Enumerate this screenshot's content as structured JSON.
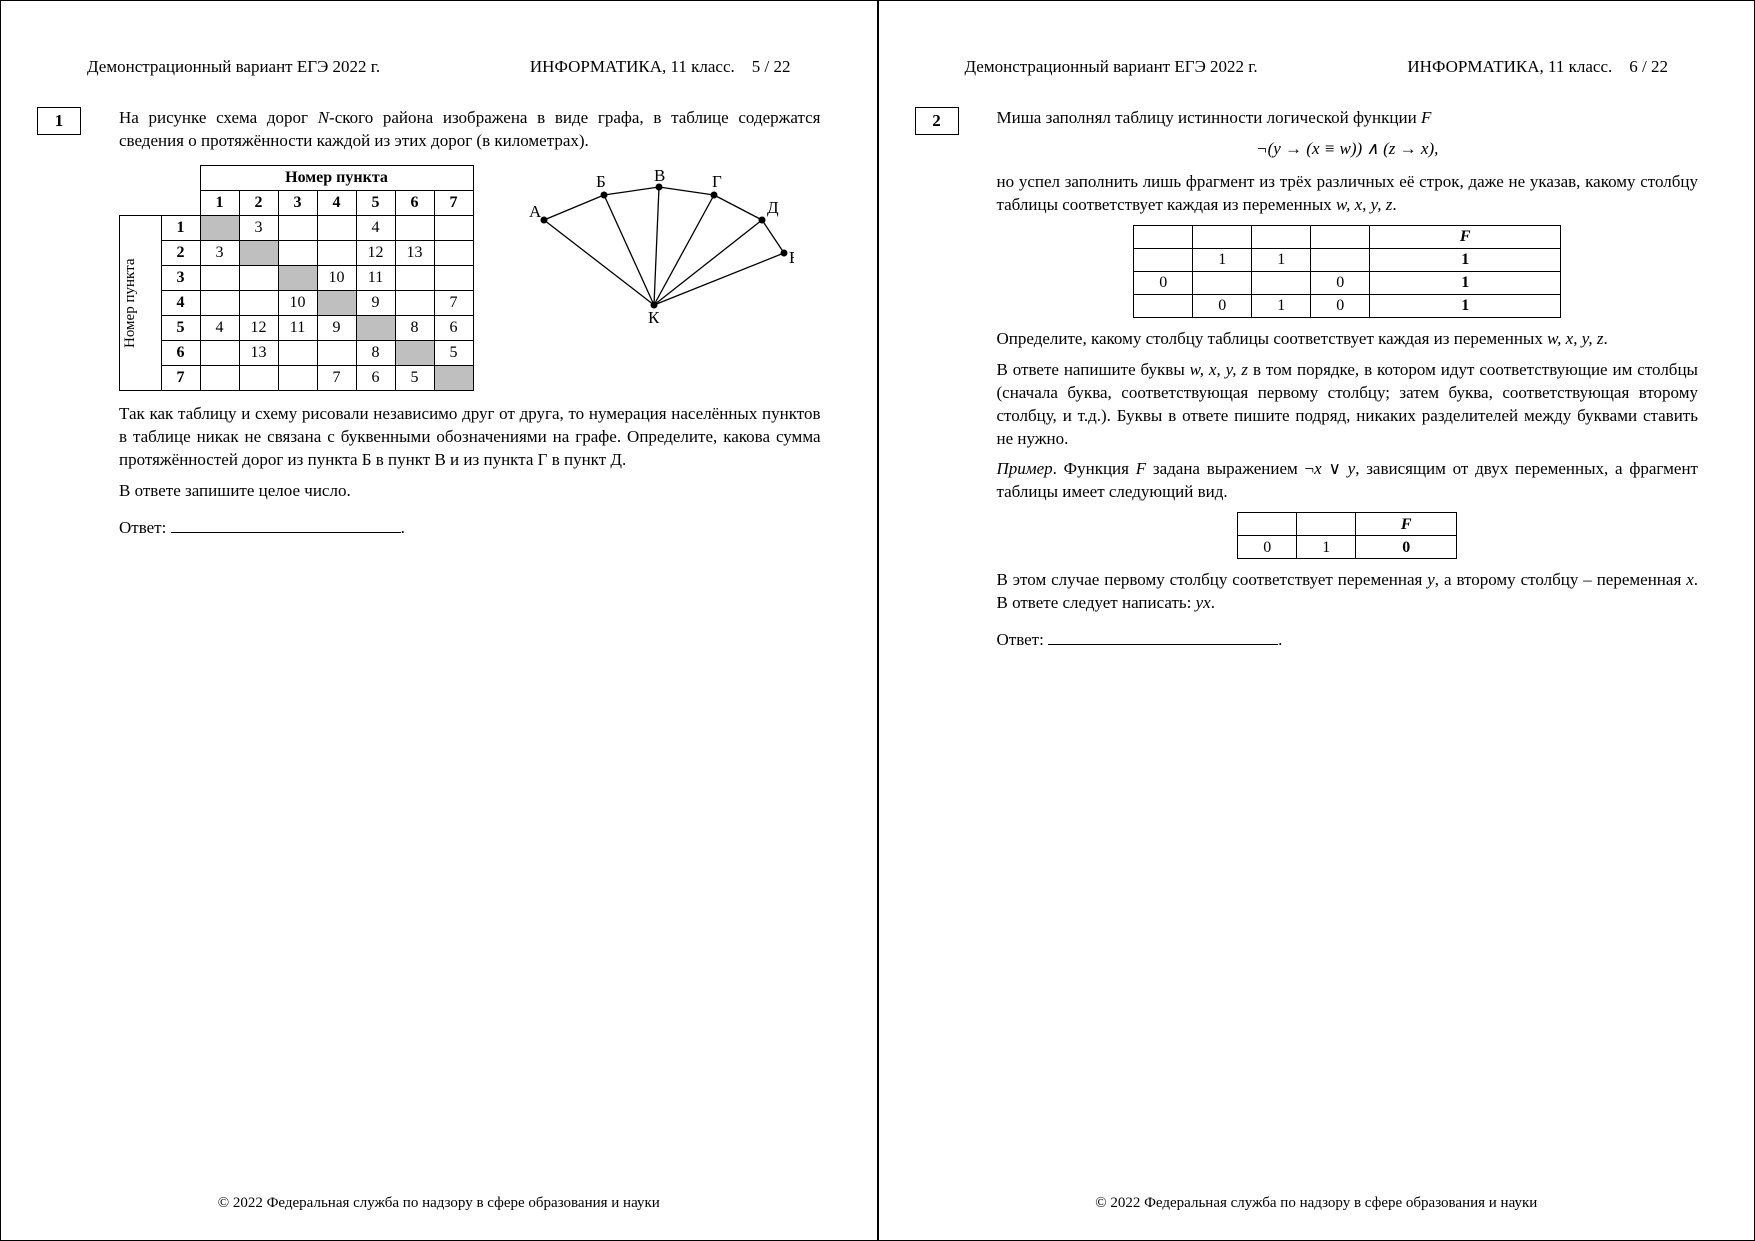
{
  "header": {
    "left": "Демонстрационный вариант ЕГЭ 2022 г.",
    "mid": "ИНФОРМАТИКА, 11 класс.",
    "page_left": "5 / 22",
    "page_right": "6 / 22"
  },
  "footer": "© 2022 Федеральная служба по надзору в сфере образования и науки",
  "p1": {
    "num": "1",
    "intro_a": "На рисунке схема дорог ",
    "intro_n": "N",
    "intro_b": "-ского района изображена в виде графа, в таблице содержатся сведения о протяжённости каждой из этих дорог (в километрах).",
    "table_top": "Номер пункта",
    "table_side": "Номер пункта",
    "cols": [
      "1",
      "2",
      "3",
      "4",
      "5",
      "6",
      "7"
    ],
    "rows": [
      {
        "n": "1",
        "c": [
          "d",
          "3",
          "",
          "",
          "4",
          "",
          ""
        ]
      },
      {
        "n": "2",
        "c": [
          "3",
          "d",
          "",
          "",
          "12",
          "13",
          ""
        ]
      },
      {
        "n": "3",
        "c": [
          "",
          "",
          "d",
          "10",
          "11",
          "",
          ""
        ]
      },
      {
        "n": "4",
        "c": [
          "",
          "",
          "10",
          "d",
          "9",
          "",
          "7"
        ]
      },
      {
        "n": "5",
        "c": [
          "4",
          "12",
          "11",
          "9",
          "d",
          "8",
          "6"
        ]
      },
      {
        "n": "6",
        "c": [
          "",
          "13",
          "",
          "",
          "8",
          "d",
          "5"
        ]
      },
      {
        "n": "7",
        "c": [
          "",
          "",
          "",
          "7",
          "6",
          "5",
          "d"
        ]
      }
    ],
    "graph": {
      "labels": {
        "A": "А",
        "B": "Б",
        "V": "В",
        "G": "Г",
        "D": "Д",
        "E": "Е",
        "K": "К"
      }
    },
    "text_after": "Так как таблицу и схему рисовали независимо друг от друга, то нумерация населённых пунктов в таблице никак не связана с буквенными обозначениями на графе. Определите, какова сумма протяжённостей дорог из пункта Б в пункт В и из пункта Г в пункт Д.",
    "text_after_2": "В ответе запишите целое число.",
    "answer": "Ответ:"
  },
  "p2": {
    "num": "2",
    "intro_a": "Миша заполнял таблицу истинности логической функции ",
    "intro_F": "F",
    "formula": "¬(y → (x ≡ w)) ∧ (z → x),",
    "para1_a": "но успел заполнить лишь фрагмент из трёх различных её строк, даже не указав, какому столбцу таблицы соответствует каждая из переменных ",
    "vars": "w, x, y, z",
    "para1_b": ".",
    "tbl1": {
      "F": "F",
      "rows": [
        [
          "",
          "1",
          "1",
          "",
          "1"
        ],
        [
          "0",
          "",
          "",
          "0",
          "1"
        ],
        [
          "",
          "0",
          "1",
          "0",
          "1"
        ]
      ]
    },
    "para2": "Определите, какому столбцу таблицы соответствует каждая из переменных ",
    "vars2": "w, x, y, z",
    "para2b": ".",
    "para3_a": "В ответе напишите буквы ",
    "vars3": "w, x, y, z",
    "para3_b": " в том порядке, в котором идут соответствующие им столбцы (сначала буква, соответствующая первому столбцу; затем буква, соответствующая второму столбцу, и т.д.). Буквы в ответе пишите подряд, никаких разделителей между буквами ставить не нужно.",
    "example_a": "Пример",
    "example_b": ". Функция ",
    "example_c": " задана выражением ¬",
    "example_e": ", зависящим от двух переменных, а фрагмент таблицы имеет следующий вид.",
    "tbl2": {
      "F": "F",
      "row": [
        "0",
        "1",
        "0"
      ]
    },
    "para5_a": "В этом случае первому столбцу соответствует переменная ",
    "y": "y",
    "para5_b": ", а второму столбцу – переменная ",
    "x": "x",
    "para5_c": ". В ответе следует написать: ",
    "yx": "yx",
    "para5_d": ".",
    "answer": "Ответ:"
  },
  "colors": {
    "shade": "#bfbfbf",
    "text": "#000000",
    "bg": "#ffffff"
  }
}
